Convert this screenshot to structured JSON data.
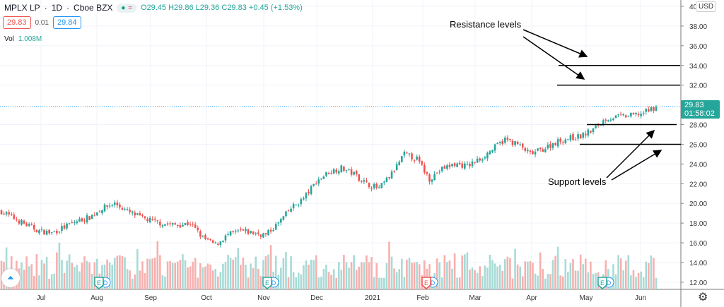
{
  "header": {
    "symbol": "MPLX LP",
    "interval": "1D",
    "exchange": "Cboe BZX",
    "open": "O29.45",
    "high": "H29.86",
    "low": "L29.36",
    "close": "C29.83",
    "change": "+0.45 (+1.53%)",
    "bid": "29.83",
    "spread": "0.01",
    "ask": "29.84",
    "volume_label": "Vol",
    "volume_value": "1.008M"
  },
  "colors": {
    "up": "#26a69a",
    "down": "#ef5350",
    "price_line": "#2196f3"
  },
  "price_tag": {
    "price": "29.83",
    "countdown": "01:58:02"
  },
  "currency": "USD",
  "annotations": {
    "resistance": "Resistance levels",
    "support": "Support levels"
  },
  "chart_data": {
    "type": "candlestick",
    "y_ticks": [
      "40",
      "38.00",
      "36.00",
      "34.00",
      "32.00",
      "28.00",
      "26.00",
      "24.00",
      "22.00",
      "20.00",
      "18.00",
      "16.00",
      "14.00",
      "12.00"
    ],
    "ylim": [
      11,
      40
    ],
    "x_ticks": [
      "Jul",
      "Aug",
      "Sep",
      "Oct",
      "Nov",
      "Dec",
      "2021",
      "Feb",
      "Mar",
      "Apr",
      "May",
      "Jun"
    ],
    "weekly_close": [
      19.2,
      18.5,
      17.8,
      17.2,
      17.0,
      17.6,
      18.2,
      18.6,
      19.5,
      20.0,
      19.2,
      18.6,
      18.2,
      17.9,
      17.8,
      18.0,
      16.5,
      15.8,
      16.8,
      17.2,
      17.0,
      16.8,
      18.0,
      19.5,
      20.5,
      22.2,
      23.2,
      23.6,
      23.0,
      22.0,
      21.5,
      23.0,
      25.0,
      24.5,
      22.5,
      23.5,
      24.0,
      23.8,
      24.5,
      25.5,
      26.5,
      26.0,
      25.0,
      25.5,
      26.2,
      26.6,
      26.8,
      27.5,
      28.6,
      28.8,
      28.9,
      29.2,
      29.83
    ],
    "resistance_levels": [
      34.0,
      32.0
    ],
    "support_levels": [
      28.0,
      26.0
    ],
    "last_price": 29.83,
    "events": [
      {
        "month": "Aug",
        "type": "E",
        "result": "up"
      },
      {
        "month": "Nov",
        "type": "E",
        "result": "up"
      },
      {
        "month": "Feb",
        "type": "E",
        "result": "down"
      },
      {
        "month": "May",
        "type": "E",
        "result": "up"
      }
    ]
  }
}
